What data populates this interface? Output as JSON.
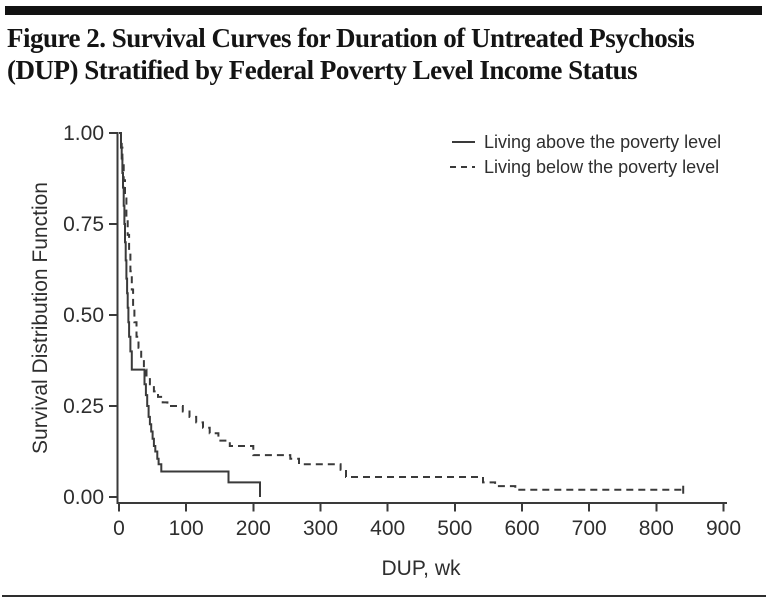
{
  "figure": {
    "title": "Figure 2. Survival Curves for Duration of Untreated Psychosis (DUP) Stratified by Federal Poverty Level Income Status",
    "title_line1": "Figure 2. Survival Curves for Duration of Untreated Psychosis",
    "title_line2": "(DUP) Stratified by Federal Poverty Level Income Status"
  },
  "chart_data": {
    "type": "line",
    "subtype": "step-survival-curve",
    "title": "Figure 2. Survival Curves for Duration of Untreated Psychosis (DUP) Stratified by Federal Poverty Level Income Status",
    "xlabel": "DUP, wk",
    "ylabel": "Survival Distribution Function",
    "xlim": [
      0,
      900
    ],
    "ylim": [
      0.0,
      1.0
    ],
    "grid": false,
    "legend_position": "top-right",
    "x_ticks": [
      {
        "value": 0,
        "label": "0"
      },
      {
        "value": 100,
        "label": "100"
      },
      {
        "value": 200,
        "label": "200"
      },
      {
        "value": 300,
        "label": "300"
      },
      {
        "value": 400,
        "label": "400"
      },
      {
        "value": 500,
        "label": "500"
      },
      {
        "value": 600,
        "label": "600"
      },
      {
        "value": 700,
        "label": "700"
      },
      {
        "value": 800,
        "label": "800"
      },
      {
        "value": 900,
        "label": "900"
      }
    ],
    "y_ticks": [
      {
        "value": 0.0,
        "label": "0.00"
      },
      {
        "value": 0.25,
        "label": "0.25"
      },
      {
        "value": 0.5,
        "label": "0.50"
      },
      {
        "value": 0.75,
        "label": "0.75"
      },
      {
        "value": 1.0,
        "label": "1.00"
      }
    ],
    "series": [
      {
        "name": "Living above the poverty level",
        "line_style": "solid",
        "color": "#3a3a3a",
        "end_tick": false,
        "step_points": [
          [
            0,
            1.0
          ],
          [
            3,
            0.97
          ],
          [
            4,
            0.93
          ],
          [
            5,
            0.89
          ],
          [
            6,
            0.85
          ],
          [
            7,
            0.8
          ],
          [
            8,
            0.75
          ],
          [
            9,
            0.7
          ],
          [
            10,
            0.65
          ],
          [
            11,
            0.6
          ],
          [
            12,
            0.56
          ],
          [
            13,
            0.52
          ],
          [
            14,
            0.48
          ],
          [
            15,
            0.44
          ],
          [
            17,
            0.4
          ],
          [
            19,
            0.35
          ],
          [
            38,
            0.31
          ],
          [
            40,
            0.28
          ],
          [
            42,
            0.25
          ],
          [
            44,
            0.22
          ],
          [
            46,
            0.2
          ],
          [
            48,
            0.18
          ],
          [
            50,
            0.16
          ],
          [
            52,
            0.14
          ],
          [
            54,
            0.125
          ],
          [
            57,
            0.105
          ],
          [
            59,
            0.09
          ],
          [
            63,
            0.07
          ],
          [
            163,
            0.04
          ],
          [
            210,
            0.0
          ]
        ]
      },
      {
        "name": "Living below the poverty level",
        "line_style": "dashed",
        "color": "#3a3a3a",
        "end_tick": true,
        "step_points": [
          [
            0,
            1.0
          ],
          [
            3,
            0.96
          ],
          [
            5,
            0.92
          ],
          [
            7,
            0.87
          ],
          [
            9,
            0.82
          ],
          [
            11,
            0.77
          ],
          [
            13,
            0.72
          ],
          [
            15,
            0.67
          ],
          [
            17,
            0.62
          ],
          [
            19,
            0.57
          ],
          [
            21,
            0.52
          ],
          [
            23,
            0.48
          ],
          [
            26,
            0.44
          ],
          [
            29,
            0.41
          ],
          [
            33,
            0.38
          ],
          [
            37,
            0.35
          ],
          [
            41,
            0.33
          ],
          [
            46,
            0.31
          ],
          [
            52,
            0.29
          ],
          [
            58,
            0.275
          ],
          [
            65,
            0.26
          ],
          [
            72,
            0.25
          ],
          [
            95,
            0.235
          ],
          [
            105,
            0.22
          ],
          [
            115,
            0.205
          ],
          [
            125,
            0.19
          ],
          [
            135,
            0.175
          ],
          [
            148,
            0.155
          ],
          [
            165,
            0.14
          ],
          [
            200,
            0.115
          ],
          [
            255,
            0.105
          ],
          [
            268,
            0.09
          ],
          [
            330,
            0.075
          ],
          [
            338,
            0.055
          ],
          [
            542,
            0.04
          ],
          [
            560,
            0.03
          ],
          [
            590,
            0.02
          ],
          [
            840,
            0.02
          ]
        ]
      }
    ]
  },
  "colors": {
    "ink": "#3a3a3a",
    "text": "#2e2e2e",
    "title_text": "#141414",
    "rule": "#121212",
    "background": "#ffffff"
  }
}
